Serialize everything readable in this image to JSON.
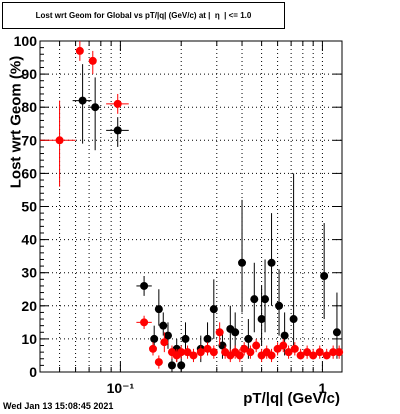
{
  "chart_data": {
    "type": "scatter",
    "title": "Lost wrt Geom for Global vs pT/|q| (GeV/c) at |  η  | <= 1.0",
    "xlabel": "pT/|q| (GeV/c)",
    "ylabel": "Lost wrt Geom (%)",
    "x_scale": "log",
    "xlim": [
      0.04,
      1.25
    ],
    "ylim": [
      0,
      100
    ],
    "grid": true,
    "y_ticks": [
      {
        "value": 0,
        "label": "0"
      },
      {
        "value": 10,
        "label": "10"
      },
      {
        "value": 20,
        "label": "20"
      },
      {
        "value": 30,
        "label": "30"
      },
      {
        "value": 40,
        "label": "40"
      },
      {
        "value": 50,
        "label": "50"
      },
      {
        "value": 60,
        "label": "60"
      },
      {
        "value": 70,
        "label": "70"
      },
      {
        "value": 80,
        "label": "80"
      },
      {
        "value": 90,
        "label": "90"
      },
      {
        "value": 100,
        "label": "100"
      }
    ],
    "x_ticks": [
      {
        "value": 0.1,
        "label": "10⁻¹"
      },
      {
        "value": 1,
        "label": "1"
      }
    ],
    "series": [
      {
        "color": "#000000",
        "points": [
          {
            "x": 0.065,
            "y": 82,
            "xerr_lo": 0.007,
            "xerr_hi": 0.007,
            "ylo": 69,
            "yhi": 93
          },
          {
            "x": 0.075,
            "y": 80,
            "xerr_lo": 0.005,
            "xerr_hi": 0.005,
            "ylo": 67,
            "yhi": 89
          },
          {
            "x": 0.097,
            "y": 73,
            "xerr_lo": 0.012,
            "xerr_hi": 0.013,
            "ylo": 68,
            "yhi": 77
          },
          {
            "x": 0.131,
            "y": 26,
            "xerr_lo": 0.011,
            "xerr_hi": 0.012,
            "ylo": 23,
            "yhi": 29
          },
          {
            "x": 0.147,
            "y": 10,
            "ylo": 6,
            "yhi": 14
          },
          {
            "x": 0.155,
            "y": 19,
            "ylo": 14,
            "yhi": 25
          },
          {
            "x": 0.163,
            "y": 14,
            "ylo": 11,
            "yhi": 18
          },
          {
            "x": 0.172,
            "y": 11,
            "ylo": 7,
            "yhi": 15
          },
          {
            "x": 0.18,
            "y": 2,
            "ylo": 0,
            "yhi": 5
          },
          {
            "x": 0.19,
            "y": 7,
            "ylo": 3,
            "yhi": 10
          },
          {
            "x": 0.2,
            "y": 2,
            "ylo": 0,
            "yhi": 5
          },
          {
            "x": 0.21,
            "y": 10,
            "ylo": 5,
            "yhi": 15
          },
          {
            "x": 0.25,
            "y": 7,
            "ylo": 3,
            "yhi": 11
          },
          {
            "x": 0.27,
            "y": 10,
            "ylo": 5,
            "yhi": 15
          },
          {
            "x": 0.29,
            "y": 19,
            "ylo": 10,
            "yhi": 28
          },
          {
            "x": 0.32,
            "y": 8,
            "ylo": 4,
            "yhi": 12
          },
          {
            "x": 0.35,
            "y": 13,
            "ylo": 6,
            "yhi": 20
          },
          {
            "x": 0.37,
            "y": 12,
            "ylo": 6,
            "yhi": 18
          },
          {
            "x": 0.4,
            "y": 33,
            "ylo": 18,
            "yhi": 52
          },
          {
            "x": 0.43,
            "y": 10,
            "ylo": 4,
            "yhi": 16
          },
          {
            "x": 0.46,
            "y": 22,
            "ylo": 12,
            "yhi": 33
          },
          {
            "x": 0.5,
            "y": 16,
            "ylo": 8,
            "yhi": 26
          },
          {
            "x": 0.52,
            "y": 22,
            "ylo": 12,
            "yhi": 34
          },
          {
            "x": 0.56,
            "y": 33,
            "ylo": 20,
            "yhi": 48
          },
          {
            "x": 0.61,
            "y": 20,
            "ylo": 11,
            "yhi": 31
          },
          {
            "x": 0.65,
            "y": 11,
            "ylo": 5,
            "yhi": 18
          },
          {
            "x": 0.72,
            "y": 16,
            "ylo": 8,
            "yhi": 60
          },
          {
            "x": 1.02,
            "y": 29,
            "ylo": 16,
            "yhi": 45
          },
          {
            "x": 1.18,
            "y": 12,
            "ylo": 4,
            "yhi": 24
          }
        ]
      },
      {
        "color": "#ff0000",
        "points": [
          {
            "x": 0.05,
            "y": 70,
            "xerr_lo": 0.01,
            "xerr_hi": 0.01,
            "ylo": 56,
            "yhi": 82
          },
          {
            "x": 0.063,
            "y": 97,
            "ylo": 94,
            "yhi": 100
          },
          {
            "x": 0.073,
            "y": 94,
            "ylo": 90,
            "yhi": 97
          },
          {
            "x": 0.097,
            "y": 81,
            "xerr_lo": 0.012,
            "xerr_hi": 0.013,
            "ylo": 78,
            "yhi": 84
          },
          {
            "x": 0.131,
            "y": 15,
            "xerr_lo": 0.011,
            "xerr_hi": 0.012,
            "ylo": 13,
            "yhi": 17
          },
          {
            "x": 0.145,
            "y": 7,
            "ylo": 5,
            "yhi": 9
          },
          {
            "x": 0.155,
            "y": 3,
            "ylo": 1,
            "yhi": 5
          },
          {
            "x": 0.165,
            "y": 9,
            "ylo": 6,
            "yhi": 12
          },
          {
            "x": 0.18,
            "y": 6,
            "ylo": 4,
            "yhi": 8
          },
          {
            "x": 0.19,
            "y": 5,
            "ylo": 3,
            "yhi": 7
          },
          {
            "x": 0.2,
            "y": 6,
            "ylo": 4,
            "yhi": 8
          },
          {
            "x": 0.215,
            "y": 6,
            "ylo": 4,
            "yhi": 8
          },
          {
            "x": 0.23,
            "y": 5,
            "ylo": 3,
            "yhi": 7
          },
          {
            "x": 0.25,
            "y": 6,
            "ylo": 4,
            "yhi": 8
          },
          {
            "x": 0.27,
            "y": 7,
            "ylo": 5,
            "yhi": 9
          },
          {
            "x": 0.29,
            "y": 6,
            "ylo": 4,
            "yhi": 8
          },
          {
            "x": 0.31,
            "y": 12,
            "ylo": 8,
            "yhi": 15
          },
          {
            "x": 0.33,
            "y": 6,
            "ylo": 4,
            "yhi": 8
          },
          {
            "x": 0.35,
            "y": 5,
            "ylo": 3,
            "yhi": 7
          },
          {
            "x": 0.37,
            "y": 6,
            "ylo": 4,
            "yhi": 8
          },
          {
            "x": 0.39,
            "y": 5,
            "ylo": 3,
            "yhi": 7
          },
          {
            "x": 0.41,
            "y": 7,
            "ylo": 5,
            "yhi": 9
          },
          {
            "x": 0.44,
            "y": 6,
            "ylo": 4,
            "yhi": 8
          },
          {
            "x": 0.47,
            "y": 8,
            "ylo": 6,
            "yhi": 10
          },
          {
            "x": 0.5,
            "y": 5,
            "ylo": 3,
            "yhi": 7
          },
          {
            "x": 0.53,
            "y": 6,
            "ylo": 4,
            "yhi": 8
          },
          {
            "x": 0.56,
            "y": 5,
            "ylo": 3,
            "yhi": 7
          },
          {
            "x": 0.6,
            "y": 7,
            "ylo": 5,
            "yhi": 9
          },
          {
            "x": 0.64,
            "y": 8,
            "ylo": 6,
            "yhi": 10
          },
          {
            "x": 0.68,
            "y": 6,
            "ylo": 4,
            "yhi": 8
          },
          {
            "x": 0.73,
            "y": 7,
            "ylo": 5,
            "yhi": 9
          },
          {
            "x": 0.78,
            "y": 5,
            "ylo": 4,
            "yhi": 7
          },
          {
            "x": 0.84,
            "y": 6,
            "ylo": 4,
            "yhi": 8
          },
          {
            "x": 0.9,
            "y": 5,
            "ylo": 4,
            "yhi": 7
          },
          {
            "x": 0.97,
            "y": 6,
            "ylo": 4,
            "yhi": 8
          },
          {
            "x": 1.05,
            "y": 5,
            "ylo": 4,
            "yhi": 7
          },
          {
            "x": 1.13,
            "y": 6,
            "ylo": 4,
            "yhi": 8
          },
          {
            "x": 1.21,
            "y": 6,
            "ylo": 4,
            "yhi": 8
          }
        ]
      }
    ]
  },
  "footer": {
    "timestamp": "Wed Jan 13 15:08:45 2021"
  }
}
